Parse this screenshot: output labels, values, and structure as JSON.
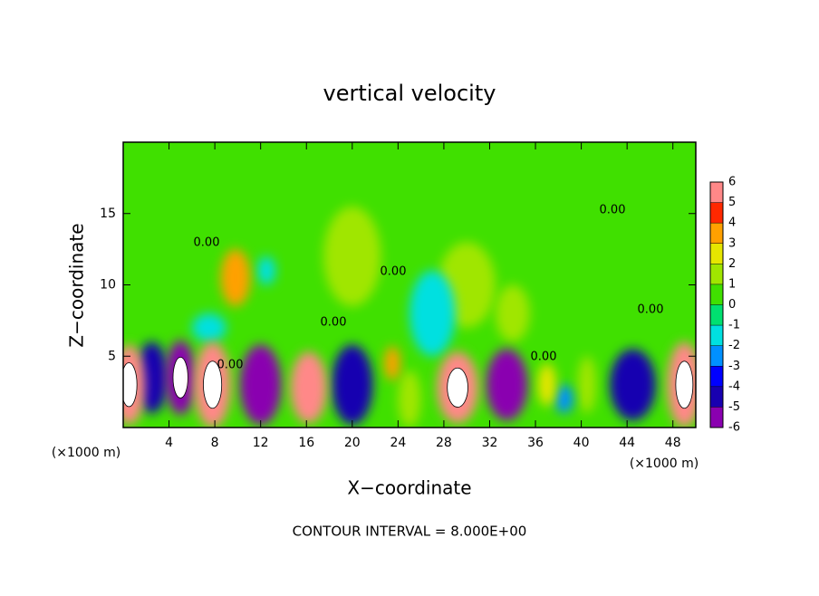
{
  "chart_data": {
    "type": "heatmap",
    "title": "vertical velocity",
    "x_label": "X−coordinate",
    "y_label": "Z−coordinate",
    "x_unit": "(×1000 m)",
    "y_unit": "(×1000 m)",
    "footer": "CONTOUR INTERVAL = 8.000E+00",
    "contour_label": "0.00",
    "xlim": [
      0,
      50
    ],
    "xticks": [
      4,
      8,
      12,
      16,
      20,
      24,
      28,
      32,
      36,
      40,
      44,
      48
    ],
    "ylim": [
      0,
      20
    ],
    "yticks": [
      5,
      10,
      15
    ],
    "colorbar": {
      "levels": [
        -6,
        -5,
        -4,
        -3,
        -2,
        -1,
        0,
        1,
        2,
        3,
        4,
        5,
        6
      ],
      "colors": [
        "#8a00b0",
        "#1800b0",
        "#0000ff",
        "#0090ff",
        "#00e0e0",
        "#00e070",
        "#40e000",
        "#a0e600",
        "#e6e600",
        "#ffa000",
        "#ff2800",
        "#ff8888"
      ]
    },
    "background_value": 0.5,
    "features": [
      {
        "x": 20,
        "z": 12,
        "rx": 2.5,
        "rz": 3.5,
        "v": 1.5
      },
      {
        "x": 30,
        "z": 10,
        "rx": 2.5,
        "rz": 3,
        "v": 1.5
      },
      {
        "x": 34,
        "z": 8,
        "rx": 1.5,
        "rz": 2,
        "v": 1.5
      },
      {
        "x": 27,
        "z": 8,
        "rx": 2,
        "rz": 3,
        "v": -1.5
      },
      {
        "x": 7.5,
        "z": 7,
        "rx": 1.5,
        "rz": 1,
        "v": -1.5
      },
      {
        "x": 12.5,
        "z": 11,
        "rx": 0.8,
        "rz": 1,
        "v": -1.5
      },
      {
        "x": 25,
        "z": 2,
        "rx": 1,
        "rz": 2,
        "v": 1.5
      },
      {
        "x": 40.5,
        "z": 3,
        "rx": 0.8,
        "rz": 2,
        "v": 2
      },
      {
        "x": 38.5,
        "z": 2,
        "rx": 0.8,
        "rz": 1,
        "v": -2.5
      },
      {
        "x": 37,
        "z": 3,
        "rx": 0.8,
        "rz": 1.5,
        "v": 2.5
      },
      {
        "x": 9.8,
        "z": 10.5,
        "rx": 1.3,
        "rz": 2,
        "v": 3.5
      },
      {
        "x": 23.5,
        "z": 4.5,
        "rx": 0.7,
        "rz": 1.2,
        "v": 3.5
      },
      {
        "x": 44.5,
        "z": 3,
        "rx": 2,
        "rz": 2.5,
        "v": -4
      },
      {
        "x": 2.5,
        "z": 3.5,
        "rx": 1.4,
        "rz": 2.5,
        "v": -4.5
      },
      {
        "x": 20,
        "z": 3,
        "rx": 1.8,
        "rz": 2.8,
        "v": -4.5
      },
      {
        "x": 12,
        "z": 3,
        "rx": 1.8,
        "rz": 2.8,
        "v": -5
      },
      {
        "x": 33.5,
        "z": 3,
        "rx": 1.8,
        "rz": 2.5,
        "v": -5
      },
      {
        "x": 5,
        "z": 3.5,
        "rx": 1.3,
        "rz": 2.6,
        "v": -7
      },
      {
        "x": 16.2,
        "z": 2.8,
        "rx": 1.6,
        "rz": 2.5,
        "v": 5.5
      },
      {
        "x": 0.5,
        "z": 3,
        "rx": 1.4,
        "rz": 2.8,
        "v": 7
      },
      {
        "x": 7.8,
        "z": 3,
        "rx": 1.6,
        "rz": 3,
        "v": 7
      },
      {
        "x": 29.2,
        "z": 2.8,
        "rx": 1.8,
        "rz": 2.5,
        "v": 7
      },
      {
        "x": 49,
        "z": 3,
        "rx": 1.5,
        "rz": 3,
        "v": 7
      }
    ]
  }
}
